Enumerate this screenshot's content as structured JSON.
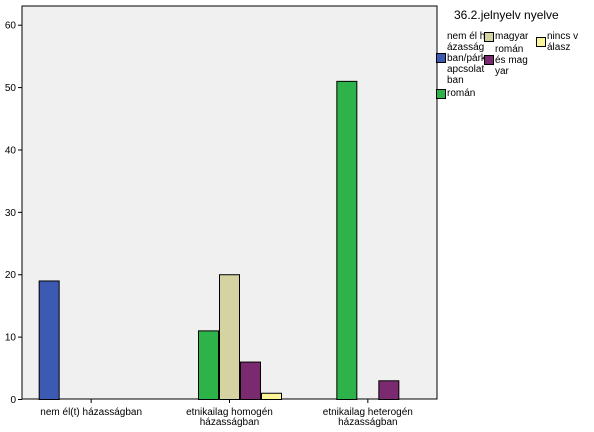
{
  "chart_data": {
    "type": "bar",
    "categories": [
      "nem él(t) házasságban",
      "etnikailag homogén házasságban",
      "etnikailag heterogén házasságban"
    ],
    "series": [
      {
        "name": "nem él házasságban/párkapcsolatban",
        "color": "#3d5ab3",
        "values": [
          19,
          null,
          null
        ]
      },
      {
        "name": "román",
        "color": "#2db34a",
        "values": [
          null,
          11,
          51
        ]
      },
      {
        "name": "magyar",
        "color": "#d6d3a2",
        "values": [
          null,
          20,
          null
        ]
      },
      {
        "name": "román és magyar",
        "color": "#7a2a6f",
        "values": [
          null,
          6,
          3
        ]
      },
      {
        "name": "nincs válasz",
        "color": "#fdf59a",
        "values": [
          null,
          1,
          null
        ]
      }
    ],
    "legend": {
      "title": "36.2.jelnyelv nyelve",
      "placement": "right",
      "entries": [
        "nem él házasságban/párkapcsolatban",
        "román",
        "magyar",
        "román és magyar",
        "nincs válasz"
      ]
    },
    "yticks": [
      "0",
      "10",
      "20",
      "30",
      "40",
      "50",
      "60"
    ],
    "ylim": [
      0,
      63
    ],
    "grid": false,
    "plot_background": "#f0f0f0"
  }
}
